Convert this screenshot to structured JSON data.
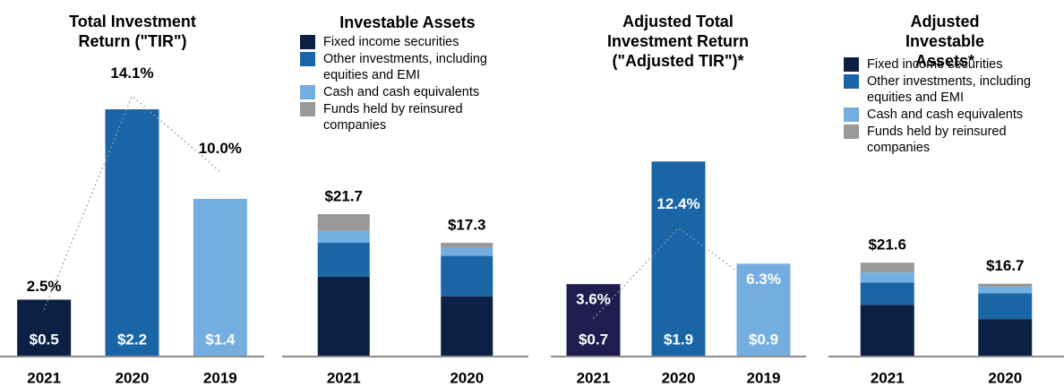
{
  "chart_data": [
    {
      "type": "bar_line",
      "title": "Total Investment Return (\"TIR\")",
      "categories": [
        "2021",
        "2020",
        "2019"
      ],
      "series": [
        {
          "values": [
            0.5,
            2.2,
            1.4
          ],
          "value_labels": [
            "$0.5",
            "$2.2",
            "$1.4"
          ],
          "colors": [
            "#0c1f44",
            "#1a65a6",
            "#74aee0"
          ]
        },
        {
          "values": [
            2.5,
            14.1,
            10.0
          ],
          "value_labels": [
            "2.5%",
            "14.1%",
            "10.0%"
          ],
          "axis": "y2",
          "color": "#9a9a9a",
          "label_color": "#000000"
        }
      ],
      "ylim": [
        0,
        2.4
      ],
      "y2lim": [
        0,
        14.6
      ]
    },
    {
      "type": "stacked_bar",
      "title": "Investable Assets",
      "categories": [
        "2021",
        "2020"
      ],
      "series": [
        {
          "name": "Fixed income securities",
          "color": "#0c1f44",
          "values": [
            12.1,
            9.1
          ]
        },
        {
          "name": "Other investments, including equities and EMI",
          "color": "#1a65a6",
          "values": [
            5.2,
            6.2
          ]
        },
        {
          "name": "Cash and cash equivalents",
          "color": "#74aee0",
          "values": [
            1.9,
            1.2
          ]
        },
        {
          "name": "Funds held by reinsured companies",
          "color": "#999999",
          "values": [
            2.5,
            0.8
          ]
        }
      ],
      "totals": [
        21.7,
        17.3
      ],
      "total_labels": [
        "$21.7",
        "$17.3"
      ],
      "ylim": [
        0,
        41.2
      ]
    },
    {
      "type": "bar_line",
      "title": "Adjusted Total Investment Return (\"Adjusted TIR\")*",
      "categories": [
        "2021",
        "2020",
        "2019"
      ],
      "series": [
        {
          "values": [
            0.7,
            1.9,
            0.9
          ],
          "value_labels": [
            "$0.7",
            "$1.9",
            "$0.9"
          ],
          "colors": [
            "#1f1d4f",
            "#1a65a6",
            "#74aee0"
          ]
        },
        {
          "values": [
            3.6,
            12.4,
            6.3
          ],
          "value_labels": [
            "3.6%",
            "12.4%",
            "6.3%"
          ],
          "axis": "y2",
          "color": "#9a9a9a",
          "label_color": "#ffffff"
        }
      ],
      "ylim": [
        0,
        2.63
      ],
      "y2lim": [
        0,
        26.1
      ]
    },
    {
      "type": "stacked_bar",
      "title": "Adjusted Investable Assets*",
      "categories": [
        "2021",
        "2020"
      ],
      "series": [
        {
          "name": "Fixed income securities",
          "color": "#0c1f44",
          "values": [
            11.8,
            8.5
          ]
        },
        {
          "name": "Other investments, including equities and EMI",
          "color": "#1a65a6",
          "values": [
            5.2,
            6.0
          ]
        },
        {
          "name": "Cash and cash equivalents",
          "color": "#74aee0",
          "values": [
            2.3,
            1.5
          ]
        },
        {
          "name": "Funds held by reinsured companies",
          "color": "#999999",
          "values": [
            2.3,
            0.7
          ]
        }
      ],
      "totals": [
        21.6,
        16.7
      ],
      "total_labels": [
        "$21.6",
        "$16.7"
      ],
      "ylim": [
        0,
        62.4
      ]
    }
  ]
}
